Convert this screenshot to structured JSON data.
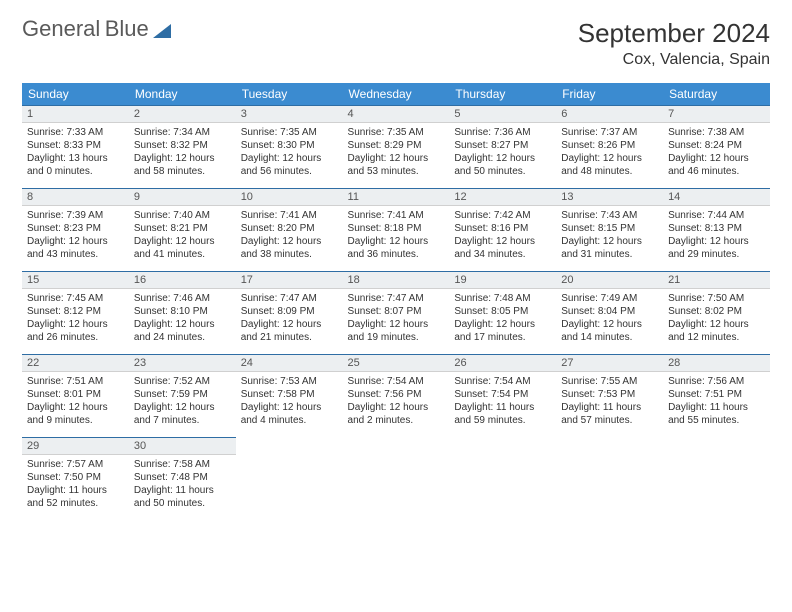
{
  "logo": {
    "text1": "General",
    "text2": "Blue"
  },
  "title": "September 2024",
  "subtitle": "Cox, Valencia, Spain",
  "colors": {
    "header_bg": "#3b8bd0",
    "header_fg": "#ffffff",
    "daynum_bg": "#eceff1",
    "daynum_border_top": "#2e6da4",
    "text": "#333333"
  },
  "weekdays": [
    "Sunday",
    "Monday",
    "Tuesday",
    "Wednesday",
    "Thursday",
    "Friday",
    "Saturday"
  ],
  "weeks": [
    [
      {
        "n": "1",
        "sunrise": "7:33 AM",
        "sunset": "8:33 PM",
        "daylight": "13 hours and 0 minutes."
      },
      {
        "n": "2",
        "sunrise": "7:34 AM",
        "sunset": "8:32 PM",
        "daylight": "12 hours and 58 minutes."
      },
      {
        "n": "3",
        "sunrise": "7:35 AM",
        "sunset": "8:30 PM",
        "daylight": "12 hours and 56 minutes."
      },
      {
        "n": "4",
        "sunrise": "7:35 AM",
        "sunset": "8:29 PM",
        "daylight": "12 hours and 53 minutes."
      },
      {
        "n": "5",
        "sunrise": "7:36 AM",
        "sunset": "8:27 PM",
        "daylight": "12 hours and 50 minutes."
      },
      {
        "n": "6",
        "sunrise": "7:37 AM",
        "sunset": "8:26 PM",
        "daylight": "12 hours and 48 minutes."
      },
      {
        "n": "7",
        "sunrise": "7:38 AM",
        "sunset": "8:24 PM",
        "daylight": "12 hours and 46 minutes."
      }
    ],
    [
      {
        "n": "8",
        "sunrise": "7:39 AM",
        "sunset": "8:23 PM",
        "daylight": "12 hours and 43 minutes."
      },
      {
        "n": "9",
        "sunrise": "7:40 AM",
        "sunset": "8:21 PM",
        "daylight": "12 hours and 41 minutes."
      },
      {
        "n": "10",
        "sunrise": "7:41 AM",
        "sunset": "8:20 PM",
        "daylight": "12 hours and 38 minutes."
      },
      {
        "n": "11",
        "sunrise": "7:41 AM",
        "sunset": "8:18 PM",
        "daylight": "12 hours and 36 minutes."
      },
      {
        "n": "12",
        "sunrise": "7:42 AM",
        "sunset": "8:16 PM",
        "daylight": "12 hours and 34 minutes."
      },
      {
        "n": "13",
        "sunrise": "7:43 AM",
        "sunset": "8:15 PM",
        "daylight": "12 hours and 31 minutes."
      },
      {
        "n": "14",
        "sunrise": "7:44 AM",
        "sunset": "8:13 PM",
        "daylight": "12 hours and 29 minutes."
      }
    ],
    [
      {
        "n": "15",
        "sunrise": "7:45 AM",
        "sunset": "8:12 PM",
        "daylight": "12 hours and 26 minutes."
      },
      {
        "n": "16",
        "sunrise": "7:46 AM",
        "sunset": "8:10 PM",
        "daylight": "12 hours and 24 minutes."
      },
      {
        "n": "17",
        "sunrise": "7:47 AM",
        "sunset": "8:09 PM",
        "daylight": "12 hours and 21 minutes."
      },
      {
        "n": "18",
        "sunrise": "7:47 AM",
        "sunset": "8:07 PM",
        "daylight": "12 hours and 19 minutes."
      },
      {
        "n": "19",
        "sunrise": "7:48 AM",
        "sunset": "8:05 PM",
        "daylight": "12 hours and 17 minutes."
      },
      {
        "n": "20",
        "sunrise": "7:49 AM",
        "sunset": "8:04 PM",
        "daylight": "12 hours and 14 minutes."
      },
      {
        "n": "21",
        "sunrise": "7:50 AM",
        "sunset": "8:02 PM",
        "daylight": "12 hours and 12 minutes."
      }
    ],
    [
      {
        "n": "22",
        "sunrise": "7:51 AM",
        "sunset": "8:01 PM",
        "daylight": "12 hours and 9 minutes."
      },
      {
        "n": "23",
        "sunrise": "7:52 AM",
        "sunset": "7:59 PM",
        "daylight": "12 hours and 7 minutes."
      },
      {
        "n": "24",
        "sunrise": "7:53 AM",
        "sunset": "7:58 PM",
        "daylight": "12 hours and 4 minutes."
      },
      {
        "n": "25",
        "sunrise": "7:54 AM",
        "sunset": "7:56 PM",
        "daylight": "12 hours and 2 minutes."
      },
      {
        "n": "26",
        "sunrise": "7:54 AM",
        "sunset": "7:54 PM",
        "daylight": "11 hours and 59 minutes."
      },
      {
        "n": "27",
        "sunrise": "7:55 AM",
        "sunset": "7:53 PM",
        "daylight": "11 hours and 57 minutes."
      },
      {
        "n": "28",
        "sunrise": "7:56 AM",
        "sunset": "7:51 PM",
        "daylight": "11 hours and 55 minutes."
      }
    ],
    [
      {
        "n": "29",
        "sunrise": "7:57 AM",
        "sunset": "7:50 PM",
        "daylight": "11 hours and 52 minutes."
      },
      {
        "n": "30",
        "sunrise": "7:58 AM",
        "sunset": "7:48 PM",
        "daylight": "11 hours and 50 minutes."
      },
      null,
      null,
      null,
      null,
      null
    ]
  ],
  "labels": {
    "sunrise": "Sunrise:",
    "sunset": "Sunset:",
    "daylight": "Daylight:"
  }
}
